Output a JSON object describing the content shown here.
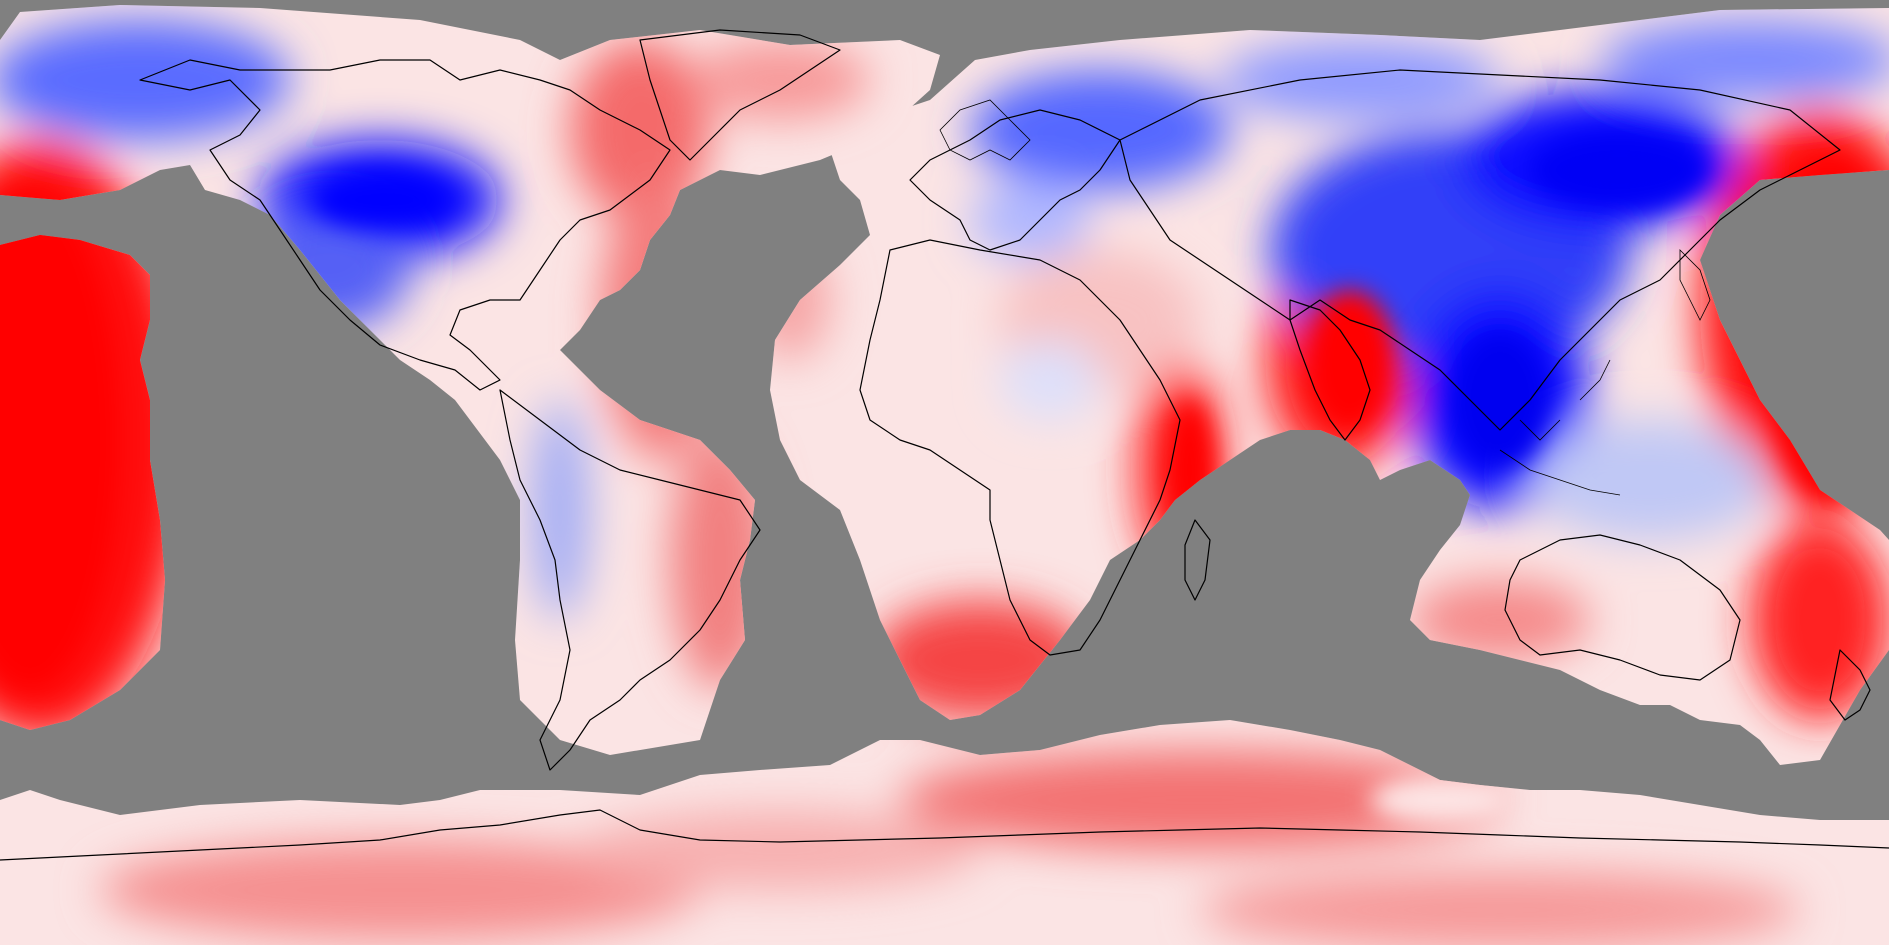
{
  "map": {
    "projection": "equirectangular",
    "colormap": {
      "negative": "#0000ff",
      "zero": "#ffffff",
      "positive": "#ff0000",
      "no_data": "#808080"
    },
    "coastline_color": "#000000",
    "labels": []
  }
}
